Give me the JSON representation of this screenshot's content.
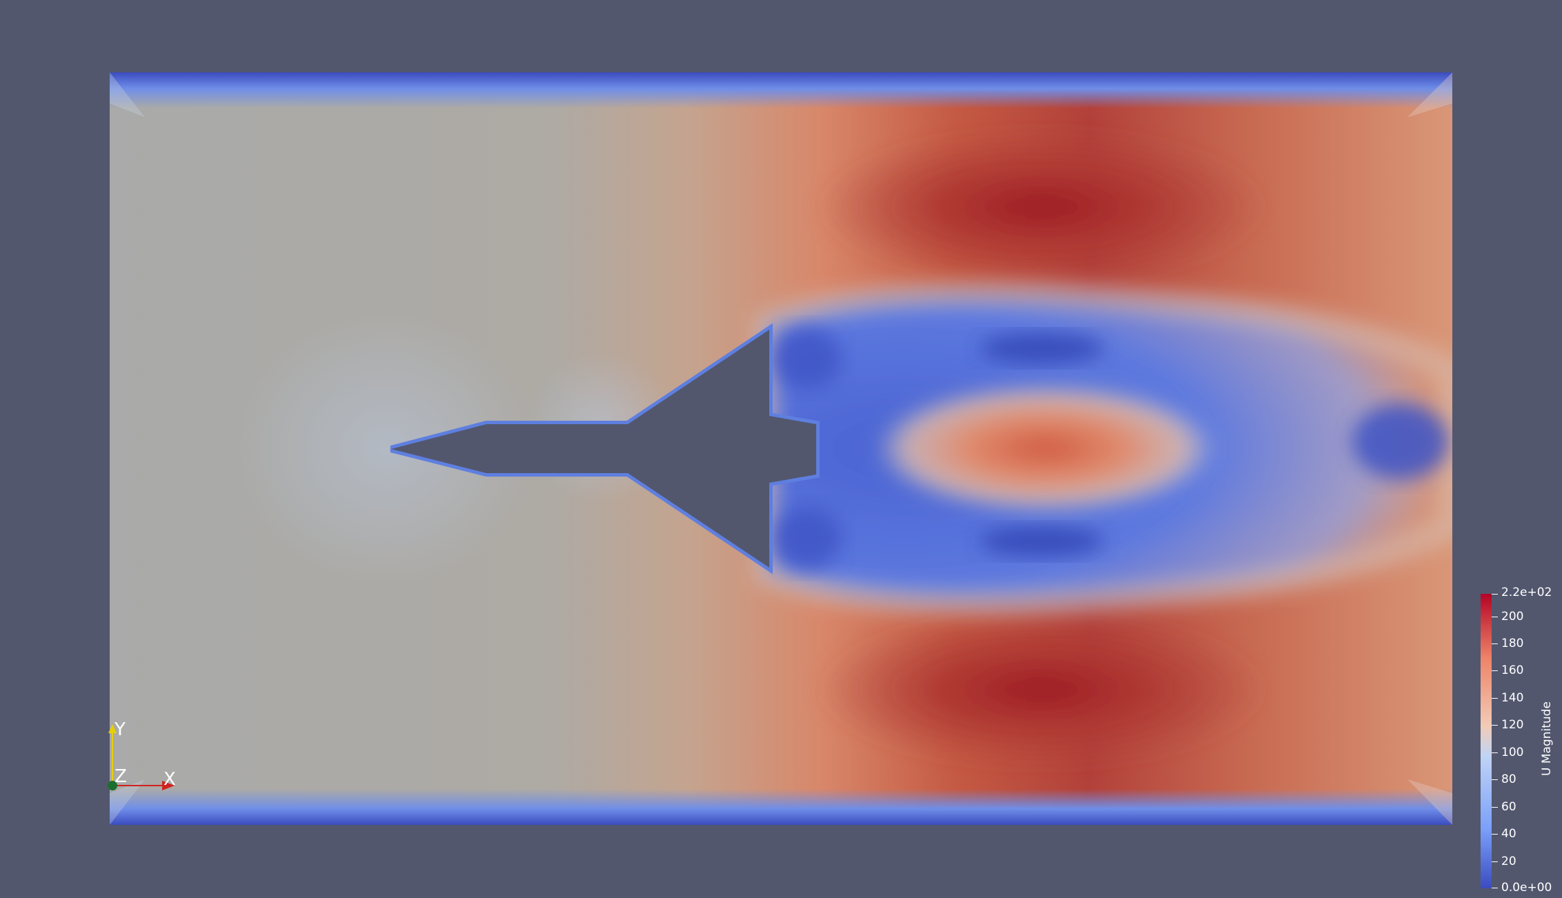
{
  "scene": {
    "background_color": "#52576e",
    "body_color": "#52576e",
    "field": "U Magnitude"
  },
  "axes_triad": {
    "x_label": "X",
    "y_label": "Y",
    "z_label": "Z",
    "x_color": "#d0221f",
    "y_color": "#e8d000",
    "z_color": "#1c6e2e"
  },
  "colorbar": {
    "title": "U Magnitude",
    "min_label": "0.0e+00",
    "max_label": "2.2e+02",
    "tick_labels": [
      "200",
      "180",
      "160",
      "140",
      "120",
      "100",
      "80",
      "60",
      "40",
      "20"
    ],
    "range": [
      0,
      220
    ],
    "colormap": [
      "#3b4cc0",
      "#7b9ff9",
      "#c0d4f5",
      "#f2cbb7",
      "#ee8468",
      "#b40426"
    ]
  }
}
